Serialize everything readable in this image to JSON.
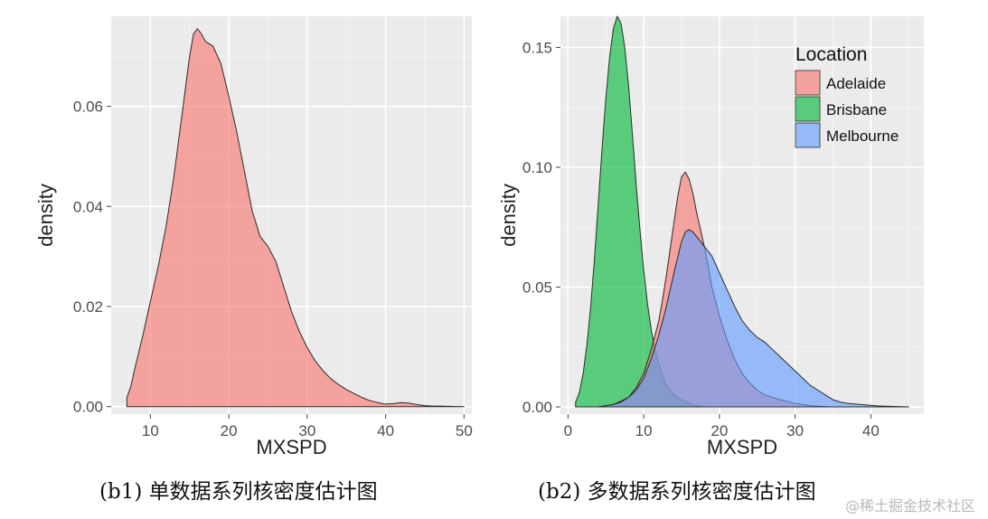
{
  "chart_data": [
    {
      "type": "area",
      "panel": "b1",
      "xlabel": "MXSPD",
      "ylabel": "density",
      "xlim": [
        5,
        51
      ],
      "ylim": [
        -0.0015,
        0.078
      ],
      "x_ticks": [
        10,
        20,
        30,
        40,
        50
      ],
      "y_ticks": [
        0.0,
        0.02,
        0.04,
        0.06
      ],
      "y_tick_labels": [
        "0.00",
        "0.02",
        "0.04",
        "0.06"
      ],
      "grid": true,
      "series": [
        {
          "color": "#F8766D",
          "x": [
            7,
            7.5,
            8,
            9,
            10,
            11,
            12,
            13,
            14,
            15,
            15.5,
            16,
            16.5,
            17,
            18,
            19,
            20,
            21,
            22,
            23,
            24,
            25,
            26,
            27,
            28,
            29,
            30,
            31,
            32,
            33,
            34,
            35,
            36,
            37,
            38,
            39,
            40,
            41,
            42,
            43,
            44,
            45,
            46,
            47,
            48,
            49,
            50
          ],
          "y": [
            0.0018,
            0.004,
            0.0075,
            0.014,
            0.021,
            0.028,
            0.036,
            0.046,
            0.058,
            0.07,
            0.0745,
            0.0755,
            0.0745,
            0.073,
            0.072,
            0.0685,
            0.062,
            0.055,
            0.047,
            0.039,
            0.034,
            0.032,
            0.029,
            0.024,
            0.019,
            0.015,
            0.0118,
            0.0092,
            0.0072,
            0.0056,
            0.0044,
            0.0034,
            0.0026,
            0.0018,
            0.0012,
            0.0008,
            0.0005,
            0.0006,
            0.0008,
            0.0007,
            0.0004,
            0.0002,
            0.0001,
            0.0001,
            5e-05,
            2e-05,
            0.0
          ]
        }
      ]
    },
    {
      "type": "area",
      "panel": "b2",
      "xlabel": "MXSPD",
      "ylabel": "density",
      "xlim": [
        -1,
        47
      ],
      "ylim": [
        -0.003,
        0.163
      ],
      "x_ticks": [
        0,
        10,
        20,
        30,
        40
      ],
      "y_ticks": [
        0.0,
        0.05,
        0.1,
        0.15
      ],
      "y_tick_labels": [
        "0.00",
        "0.05",
        "0.10",
        "0.15"
      ],
      "grid": true,
      "legend": {
        "title": "Location",
        "position": "top-right",
        "entries": [
          "Adelaide",
          "Brisbane",
          "Melbourne"
        ]
      },
      "series": [
        {
          "name": "Brisbane",
          "color": "#00BA38",
          "x": [
            1,
            1.5,
            2,
            2.5,
            3,
            3.5,
            4,
            4.5,
            5,
            5.5,
            6,
            6.5,
            7,
            7.5,
            8,
            8.5,
            9,
            9.5,
            10,
            10.5,
            11,
            11.5,
            12,
            12.5,
            13,
            14,
            15,
            16,
            17,
            18
          ],
          "y": [
            0.002,
            0.006,
            0.014,
            0.026,
            0.042,
            0.062,
            0.085,
            0.108,
            0.129,
            0.146,
            0.158,
            0.163,
            0.16,
            0.15,
            0.134,
            0.114,
            0.093,
            0.074,
            0.057,
            0.043,
            0.032,
            0.024,
            0.018,
            0.013,
            0.009,
            0.005,
            0.003,
            0.0015,
            0.0005,
            0.0
          ]
        },
        {
          "name": "Adelaide",
          "color": "#F8766D",
          "x": [
            4,
            6,
            8,
            9,
            10,
            11,
            12,
            12.5,
            13,
            13.5,
            14,
            14.5,
            15,
            15.5,
            16,
            16.5,
            17,
            17.5,
            18,
            18.5,
            19,
            20,
            21,
            22,
            23,
            24,
            25,
            26,
            27,
            28,
            30,
            32,
            35
          ],
          "y": [
            0.0,
            0.001,
            0.004,
            0.008,
            0.014,
            0.024,
            0.036,
            0.045,
            0.055,
            0.066,
            0.077,
            0.088,
            0.096,
            0.098,
            0.095,
            0.089,
            0.081,
            0.074,
            0.067,
            0.059,
            0.05,
            0.038,
            0.028,
            0.02,
            0.014,
            0.01,
            0.007,
            0.005,
            0.004,
            0.003,
            0.0015,
            0.0005,
            0.0
          ]
        },
        {
          "name": "Melbourne",
          "color": "#619CFF",
          "x": [
            4,
            6,
            7,
            8,
            9,
            10,
            11,
            12,
            13,
            14,
            15,
            15.5,
            16,
            16.5,
            17,
            18,
            19,
            20,
            21,
            22,
            23,
            24,
            25,
            26,
            27,
            28,
            29,
            30,
            31,
            32,
            33,
            34,
            35,
            36,
            37,
            38,
            39,
            40,
            41,
            42,
            43,
            44,
            45
          ],
          "y": [
            0.0,
            0.001,
            0.002,
            0.004,
            0.007,
            0.012,
            0.02,
            0.03,
            0.042,
            0.056,
            0.069,
            0.073,
            0.074,
            0.073,
            0.071,
            0.067,
            0.063,
            0.056,
            0.049,
            0.042,
            0.036,
            0.032,
            0.029,
            0.027,
            0.024,
            0.021,
            0.018,
            0.015,
            0.012,
            0.009,
            0.007,
            0.005,
            0.003,
            0.002,
            0.0015,
            0.0012,
            0.0009,
            0.0007,
            0.0004,
            0.0003,
            0.0002,
            0.0001,
            0.0
          ]
        }
      ]
    }
  ],
  "captions": {
    "b1": "(b1)  单数据系列核密度估计图",
    "b2": "(b2)  多数据系列核密度估计图"
  },
  "watermark": "@稀土掘金技术社区"
}
